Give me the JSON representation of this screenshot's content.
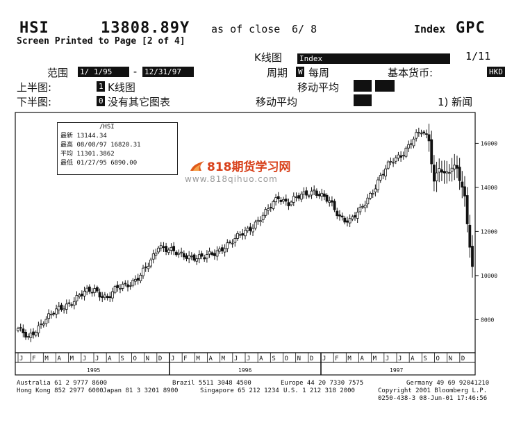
{
  "header": {
    "ticker": "HSI",
    "price": "13808.89Y",
    "as_of": "as of close",
    "date": "6/ 8",
    "type": "Index",
    "function": "GPC",
    "screen_note": "Screen Printed to Page [2 of 4]"
  },
  "controls": {
    "k_chart_label": "K线图",
    "k_chart_value": "Index",
    "page": "1/11",
    "range_label": "范围",
    "range_start": "1/ 1/95",
    "range_sep": "-",
    "range_end": "12/31/97",
    "period_label": "周期",
    "period_flag": "W",
    "period_value": "每周",
    "base_currency_label": "基本货币:",
    "base_currency_value": "HKD",
    "upper_label": "上半图:",
    "upper_flag": "1",
    "upper_value": "K线图",
    "ma_label_1": "移动平均",
    "lower_label": "下半图:",
    "lower_flag": "0",
    "lower_value": "没有其它图表",
    "ma_label_2": "移动平均",
    "news_label": "1) 新闻"
  },
  "legend": {
    "header": "/HSI",
    "last_label": "最新",
    "last_value": "13144.34",
    "high_label": "最高",
    "high_value": "08/08/97  16820.31",
    "avg_label": "平均",
    "avg_value": "11301.3862",
    "low_label": "最低",
    "low_value": "01/27/95  6890.00"
  },
  "watermark": {
    "brand": "818期货学习网",
    "url": "www.818qihuo.com"
  },
  "footer": {
    "line1_a": "Australia 61 2 9777 8600",
    "line1_b": "Brazil 5511 3048 4500",
    "line1_c": "Europe 44 20 7330 7575",
    "line1_d": "Germany 49 69 92041210",
    "line2_a": "Hong Kong 852 2977 6000",
    "line2_b": "Japan 81 3 3201 8900",
    "line2_c": "Singapore 65 212 1234",
    "line2_d": "U.S. 1 212 318 2000",
    "line2_e": "Copyright 2001 Bloomberg L.P.",
    "line3": "0250-438-3 08-Jun-01 17:46:56"
  },
  "chart_data": {
    "type": "candlestick",
    "title": "",
    "x_unit": "weekly",
    "ylim": [
      6500,
      17400
    ],
    "y_ticks": [
      8000,
      10000,
      12000,
      14000,
      16000
    ],
    "y_tick_labels": [
      "8000",
      "10000",
      "12000",
      "14000",
      "16000"
    ],
    "month_labels": [
      "J",
      "F",
      "M",
      "A",
      "M",
      "J",
      "J",
      "A",
      "S",
      "O",
      "N",
      "D",
      "J",
      "F",
      "M",
      "A",
      "M",
      "J",
      "J",
      "A",
      "S",
      "O",
      "N",
      "D",
      "J",
      "F",
      "M",
      "A",
      "M",
      "J",
      "J",
      "A",
      "S",
      "O",
      "N",
      "D"
    ],
    "year_labels": [
      "1995",
      "1996",
      "1997"
    ],
    "grid": false,
    "anchors": [
      [
        0,
        7600
      ],
      [
        4,
        7100
      ],
      [
        10,
        8000
      ],
      [
        17,
        8500
      ],
      [
        24,
        9100
      ],
      [
        30,
        9350
      ],
      [
        35,
        9000
      ],
      [
        39,
        9400
      ],
      [
        44,
        9700
      ],
      [
        48,
        10000
      ],
      [
        52,
        10600
      ],
      [
        55,
        11400
      ],
      [
        59,
        11200
      ],
      [
        63,
        10900
      ],
      [
        68,
        10900
      ],
      [
        73,
        10800
      ],
      [
        77,
        11000
      ],
      [
        80,
        11300
      ],
      [
        85,
        11600
      ],
      [
        91,
        12200
      ],
      [
        97,
        12800
      ],
      [
        102,
        13600
      ],
      [
        106,
        13300
      ],
      [
        111,
        13600
      ],
      [
        116,
        13900
      ],
      [
        122,
        13300
      ],
      [
        126,
        12700
      ],
      [
        130,
        12500
      ],
      [
        134,
        12900
      ],
      [
        138,
        13700
      ],
      [
        142,
        14500
      ],
      [
        146,
        15100
      ],
      [
        150,
        15500
      ],
      [
        155,
        16200
      ],
      [
        158,
        16500
      ],
      [
        161,
        16200
      ],
      [
        163,
        14300
      ],
      [
        165,
        15000
      ],
      [
        167,
        14500
      ],
      [
        170,
        14800
      ],
      [
        172,
        14900
      ],
      [
        175,
        13600
      ],
      [
        178,
        10300
      ]
    ],
    "n_weeks": 179
  }
}
